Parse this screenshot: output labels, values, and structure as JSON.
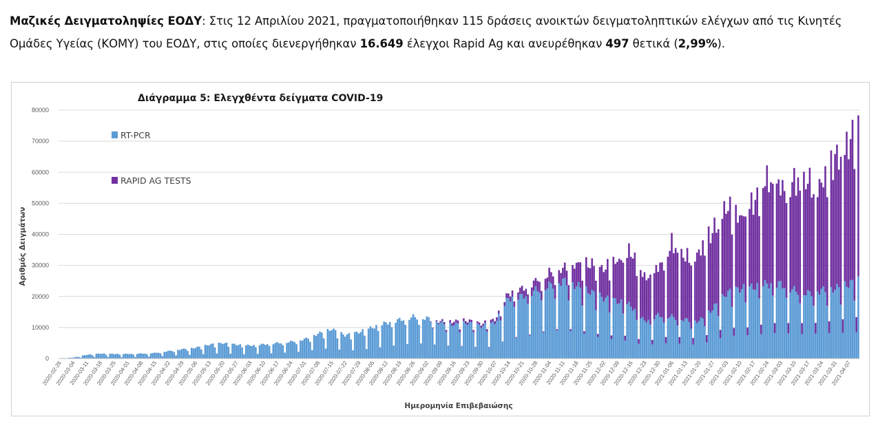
{
  "paragraph": {
    "p1": "Μαζικές Δειγματοληψίες ΕΟΔΥ",
    "p2": ": Στις 12 Απριλίου 2021, πραγματοποιήθηκαν 115 δράσεις ανοικτών δειγματοληπτικών ελέγχων από τις Κινητές Ομάδες Υγείας (ΚΟΜΥ) του ΕΟΔΥ, στις οποίες διενεργήθηκαν ",
    "p3": "16.649",
    "p4": " έλεγχοι Rapid Ag και ανευρέθηκαν ",
    "p5": "497",
    "p6": " θετικά (",
    "p7": "2,99%",
    "p8": ")."
  },
  "chart_data": {
    "type": "bar",
    "stacked": true,
    "title": "Διάγραμμα 5: Ελεγχθέντα δείγματα COVID-19",
    "xlabel": "Ημερομηνία Επιβεβαιώσης",
    "ylabel": "Αριθμός Δειγμάτων",
    "ylim": [
      0,
      80000
    ],
    "yticks": [
      0,
      10000,
      20000,
      30000,
      40000,
      50000,
      60000,
      70000,
      80000
    ],
    "grid": true,
    "legend_position": "left-inside",
    "x_start": "2020-02-26",
    "x_end": "2021-04-12",
    "x_tick_labels": [
      "2020-02-26",
      "2020-03-04",
      "2020-03-11",
      "2020-03-18",
      "2020-03-25",
      "2020-04-01",
      "2020-04-08",
      "2020-04-15",
      "2020-04-22",
      "2020-04-29",
      "2020-05-06",
      "2020-05-13",
      "2020-05-20",
      "2020-05-27",
      "2020-06-03",
      "2020-06-10",
      "2020-06-17",
      "2020-06-24",
      "2020-07-01",
      "2020-07-08",
      "2020-07-15",
      "2020-07-22",
      "2020-07-29",
      "2020-08-05",
      "2020-08-12",
      "2020-08-19",
      "2020-08-26",
      "2020-09-02",
      "2020-09-09",
      "2020-09-16",
      "2020-09-23",
      "2020-09-30",
      "2020-10-07",
      "2020-10-14",
      "2020-10-21",
      "2020-10-28",
      "2020-11-04",
      "2020-11-11",
      "2020-11-18",
      "2020-11-25",
      "2020-12-02",
      "2020-12-09",
      "2020-12-16",
      "2020-12-23",
      "2020-12-30",
      "2021-01-06",
      "2021-01-13",
      "2021-01-20",
      "2021-01-27",
      "2021-02-03",
      "2021-02-10",
      "2021-02-17",
      "2021-02-24",
      "2021-03-03",
      "2021-03-10",
      "2021-03-17",
      "2021-03-24",
      "2021-03-31",
      "2021-04-07"
    ],
    "weekly_points": [
      {
        "date": "2020-02-26",
        "rtpcr": 100,
        "rapid": 0
      },
      {
        "date": "2020-03-04",
        "rtpcr": 300,
        "rapid": 0
      },
      {
        "date": "2020-03-11",
        "rtpcr": 1200,
        "rapid": 0
      },
      {
        "date": "2020-03-18",
        "rtpcr": 1600,
        "rapid": 0
      },
      {
        "date": "2020-03-25",
        "rtpcr": 1500,
        "rapid": 0
      },
      {
        "date": "2020-04-01",
        "rtpcr": 1500,
        "rapid": 0
      },
      {
        "date": "2020-04-08",
        "rtpcr": 1600,
        "rapid": 0
      },
      {
        "date": "2020-04-15",
        "rtpcr": 1800,
        "rapid": 0
      },
      {
        "date": "2020-04-22",
        "rtpcr": 2400,
        "rapid": 0
      },
      {
        "date": "2020-04-29",
        "rtpcr": 3000,
        "rapid": 0
      },
      {
        "date": "2020-05-06",
        "rtpcr": 3500,
        "rapid": 0
      },
      {
        "date": "2020-05-13",
        "rtpcr": 4500,
        "rapid": 0
      },
      {
        "date": "2020-05-20",
        "rtpcr": 5000,
        "rapid": 0
      },
      {
        "date": "2020-05-27",
        "rtpcr": 4500,
        "rapid": 0
      },
      {
        "date": "2020-06-03",
        "rtpcr": 4200,
        "rapid": 0
      },
      {
        "date": "2020-06-10",
        "rtpcr": 4600,
        "rapid": 0
      },
      {
        "date": "2020-06-17",
        "rtpcr": 5000,
        "rapid": 0
      },
      {
        "date": "2020-06-24",
        "rtpcr": 5400,
        "rapid": 0
      },
      {
        "date": "2020-07-01",
        "rtpcr": 6200,
        "rapid": 0
      },
      {
        "date": "2020-07-08",
        "rtpcr": 8000,
        "rapid": 0
      },
      {
        "date": "2020-07-15",
        "rtpcr": 9500,
        "rapid": 0
      },
      {
        "date": "2020-07-22",
        "rtpcr": 7500,
        "rapid": 0
      },
      {
        "date": "2020-07-29",
        "rtpcr": 8500,
        "rapid": 0
      },
      {
        "date": "2020-08-05",
        "rtpcr": 10000,
        "rapid": 0
      },
      {
        "date": "2020-08-12",
        "rtpcr": 11500,
        "rapid": 0
      },
      {
        "date": "2020-08-19",
        "rtpcr": 12500,
        "rapid": 0
      },
      {
        "date": "2020-08-26",
        "rtpcr": 13500,
        "rapid": 0
      },
      {
        "date": "2020-09-02",
        "rtpcr": 13000,
        "rapid": 0
      },
      {
        "date": "2020-09-09",
        "rtpcr": 11500,
        "rapid": 500
      },
      {
        "date": "2020-09-16",
        "rtpcr": 11000,
        "rapid": 1000
      },
      {
        "date": "2020-09-23",
        "rtpcr": 11500,
        "rapid": 800
      },
      {
        "date": "2020-09-30",
        "rtpcr": 10500,
        "rapid": 700
      },
      {
        "date": "2020-10-07",
        "rtpcr": 11500,
        "rapid": 1000
      },
      {
        "date": "2020-10-14",
        "rtpcr": 19500,
        "rapid": 1500
      },
      {
        "date": "2020-10-21",
        "rtpcr": 20000,
        "rapid": 2500
      },
      {
        "date": "2020-10-28",
        "rtpcr": 22000,
        "rapid": 3000
      },
      {
        "date": "2020-11-04",
        "rtpcr": 23500,
        "rapid": 4000
      },
      {
        "date": "2020-11-11",
        "rtpcr": 25000,
        "rapid": 4000
      },
      {
        "date": "2020-11-18",
        "rtpcr": 23500,
        "rapid": 7000
      },
      {
        "date": "2020-11-25",
        "rtpcr": 21500,
        "rapid": 9000
      },
      {
        "date": "2020-12-02",
        "rtpcr": 19500,
        "rapid": 9500
      },
      {
        "date": "2020-12-09",
        "rtpcr": 18500,
        "rapid": 13000
      },
      {
        "date": "2020-12-16",
        "rtpcr": 17000,
        "rapid": 17500
      },
      {
        "date": "2020-12-23",
        "rtpcr": 12000,
        "rapid": 14000
      },
      {
        "date": "2020-12-30",
        "rtpcr": 14000,
        "rapid": 15000
      },
      {
        "date": "2021-01-06",
        "rtpcr": 13500,
        "rapid": 23500
      },
      {
        "date": "2021-01-13",
        "rtpcr": 12500,
        "rapid": 20000
      },
      {
        "date": "2021-01-20",
        "rtpcr": 12000,
        "rapid": 22000
      },
      {
        "date": "2021-01-27",
        "rtpcr": 16000,
        "rapid": 25000
      },
      {
        "date": "2021-02-03",
        "rtpcr": 21000,
        "rapid": 28000
      },
      {
        "date": "2021-02-10",
        "rtpcr": 22500,
        "rapid": 23000
      },
      {
        "date": "2021-02-17",
        "rtpcr": 23000,
        "rapid": 27000
      },
      {
        "date": "2021-02-24",
        "rtpcr": 24000,
        "rapid": 34000
      },
      {
        "date": "2021-03-03",
        "rtpcr": 24000,
        "rapid": 31000
      },
      {
        "date": "2021-03-10",
        "rtpcr": 22000,
        "rapid": 35000
      },
      {
        "date": "2021-03-17",
        "rtpcr": 21000,
        "rapid": 36000
      },
      {
        "date": "2021-03-24",
        "rtpcr": 22000,
        "rapid": 34000
      },
      {
        "date": "2021-03-31",
        "rtpcr": 22500,
        "rapid": 42000
      },
      {
        "date": "2021-04-07",
        "rtpcr": 24000,
        "rapid": 45000
      },
      {
        "date": "2021-04-12",
        "rtpcr": 25000,
        "rapid": 50000
      }
    ],
    "series": [
      {
        "name": "RT-PCR",
        "color": "#5b9bd5"
      },
      {
        "name": "RAPID AG TESTS",
        "color": "#7030a0"
      }
    ]
  }
}
